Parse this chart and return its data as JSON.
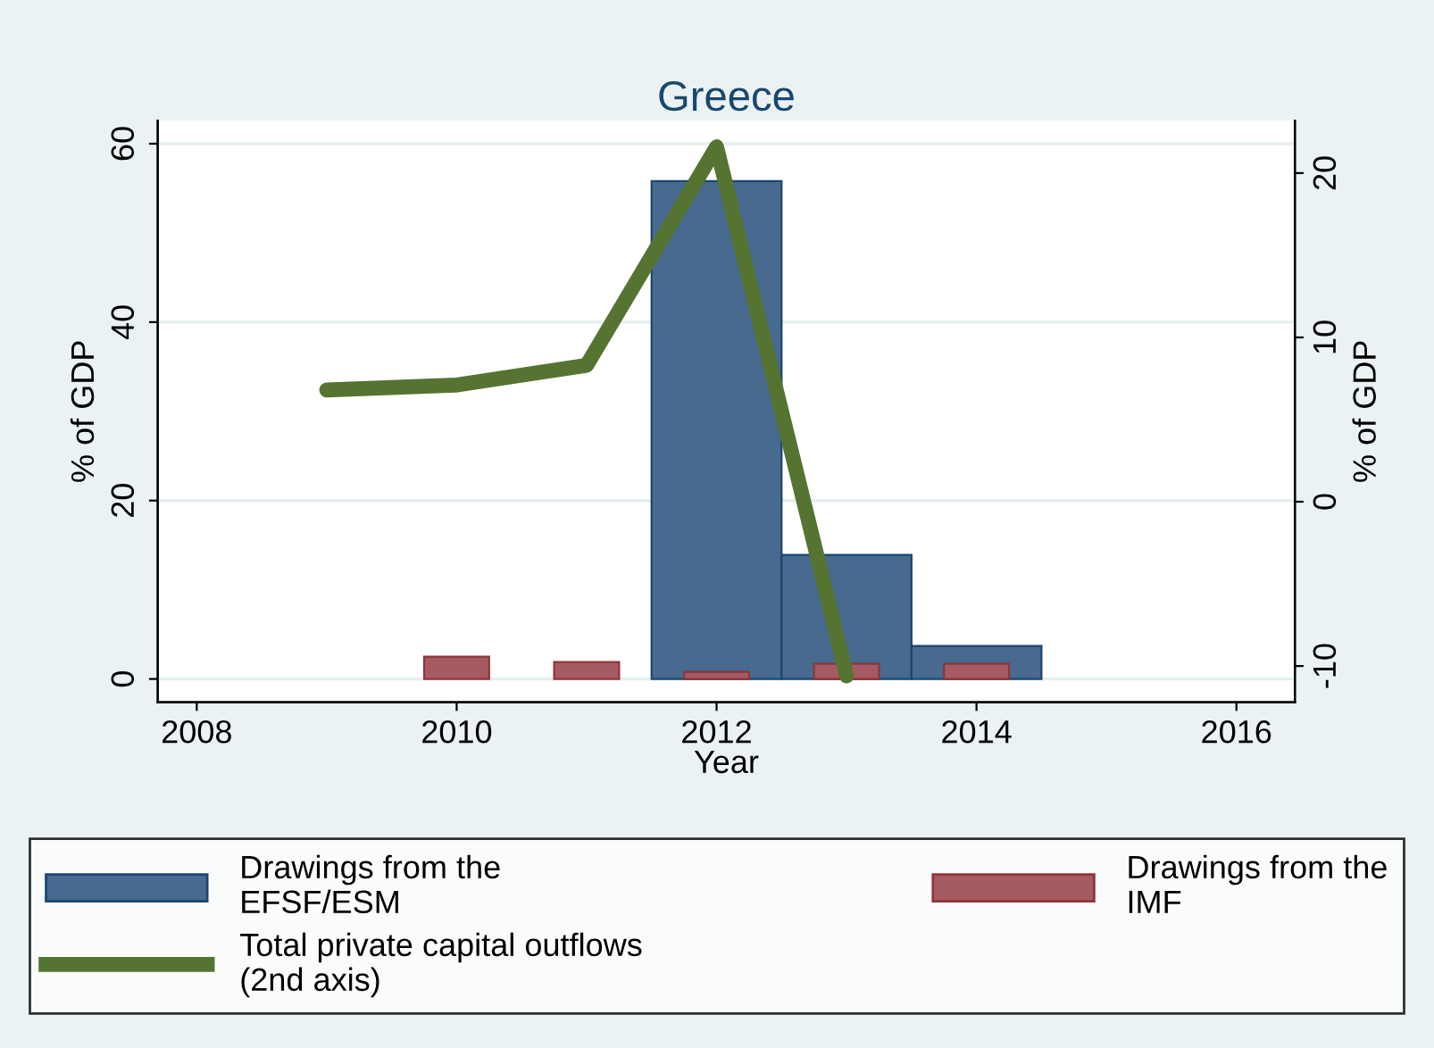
{
  "chart_data": {
    "type": "bar",
    "title": "Greece",
    "xlabel": "Year",
    "ylabel": "% of GDP",
    "y2label": "% of GDP",
    "xlim": [
      2007.7,
      2016.45
    ],
    "xticks": [
      2008,
      2010,
      2012,
      2014,
      2016
    ],
    "ylim": [
      -2.6,
      62.6
    ],
    "yticks": [
      0,
      20,
      40,
      60
    ],
    "y2lim": [
      -12.2,
      23.2
    ],
    "y2ticks": [
      -10,
      0,
      10,
      20
    ],
    "grid": "y",
    "legend": "bottom",
    "series": [
      {
        "name": "Drawings from the\nEFSF/ESM",
        "color": "#476a8e",
        "x": [
          2012,
          2013,
          2014
        ],
        "values": [
          55.8,
          13.9,
          3.7
        ]
      },
      {
        "name": "Drawings from the\nIMF",
        "color": "#a65b63",
        "x": [
          2010,
          2011,
          2012,
          2013,
          2014
        ],
        "values": [
          2.5,
          1.9,
          0.8,
          1.7,
          1.7
        ]
      },
      {
        "name": "Total private capital outflows\n(2nd axis)",
        "type": "line",
        "axis": "y2",
        "color": "#557431",
        "x": [
          2009,
          2010,
          2011,
          2012,
          2013
        ],
        "values": [
          6.8,
          7.1,
          8.3,
          21.6,
          -10.6
        ]
      }
    ]
  }
}
